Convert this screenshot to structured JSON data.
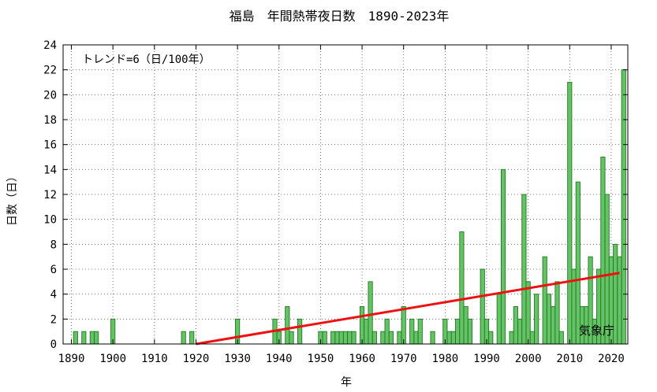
{
  "chart_data": {
    "type": "bar",
    "title": "福島　年間熱帯夜日数　1890-2023年",
    "xlabel": "年",
    "ylabel": "日数（日）",
    "trend_label": "トレンド=6（日/100年）",
    "credit": "気象庁",
    "xlim": [
      1888,
      2024
    ],
    "ylim": [
      0,
      24
    ],
    "xticks": [
      1890,
      1900,
      1910,
      1920,
      1930,
      1940,
      1950,
      1960,
      1970,
      1980,
      1990,
      2000,
      2010,
      2020
    ],
    "yticks": [
      0,
      2,
      4,
      6,
      8,
      10,
      12,
      14,
      16,
      18,
      20,
      22,
      24
    ],
    "colors": {
      "bar_fill": "#66c266",
      "bar_edge": "#1e7a1e",
      "trend": "#ee1111"
    },
    "series": [
      {
        "x": [
          1891,
          1892,
          1893,
          1894,
          1895,
          1896,
          1897,
          1898,
          1899,
          1900,
          1901,
          1902,
          1903,
          1904,
          1905,
          1906,
          1907,
          1908,
          1909,
          1910,
          1911,
          1912,
          1913,
          1914,
          1915,
          1916,
          1917,
          1918,
          1919,
          1920,
          1921,
          1922,
          1923,
          1924,
          1925,
          1926,
          1927,
          1928,
          1929,
          1930,
          1931,
          1932,
          1933,
          1934,
          1935,
          1936,
          1937,
          1938,
          1939,
          1940,
          1941,
          1942,
          1943,
          1944,
          1945,
          1946,
          1947,
          1948,
          1949,
          1950,
          1951,
          1952,
          1953,
          1954,
          1955,
          1956,
          1957,
          1958,
          1959,
          1960,
          1961,
          1962,
          1963,
          1964,
          1965,
          1966,
          1967,
          1968,
          1969,
          1970,
          1971,
          1972,
          1973,
          1974,
          1975,
          1976,
          1977,
          1978,
          1979,
          1980,
          1981,
          1982,
          1983,
          1984,
          1985,
          1986,
          1987,
          1988,
          1989,
          1990,
          1991,
          1992,
          1993,
          1994,
          1995,
          1996,
          1997,
          1998,
          1999,
          2000,
          2001,
          2002,
          2003,
          2004,
          2005,
          2006,
          2007,
          2008,
          2009,
          2010,
          2011,
          2012,
          2013,
          2014,
          2015,
          2016,
          2017,
          2018,
          2019,
          2020,
          2021,
          2022,
          2023
        ],
        "values": [
          1,
          0,
          1,
          0,
          1,
          1,
          0,
          0,
          0,
          2,
          0,
          0,
          0,
          0,
          0,
          0,
          0,
          0,
          0,
          0,
          0,
          0,
          0,
          0,
          0,
          0,
          1,
          0,
          1,
          0,
          0,
          0,
          0,
          0,
          0,
          0,
          0,
          0,
          0,
          2,
          0,
          0,
          0,
          0,
          0,
          0,
          0,
          0,
          2,
          1,
          0,
          3,
          1,
          0,
          2,
          0,
          0,
          0,
          0,
          1,
          1,
          0,
          1,
          1,
          1,
          1,
          1,
          1,
          0,
          3,
          2,
          5,
          1,
          0,
          1,
          2,
          1,
          0,
          1,
          3,
          0,
          2,
          1,
          2,
          0,
          0,
          1,
          0,
          0,
          2,
          1,
          1,
          2,
          9,
          3,
          2,
          0,
          0,
          6,
          2,
          1,
          0,
          4,
          14,
          0,
          1,
          3,
          2,
          12,
          5,
          1,
          4,
          0,
          7,
          4,
          3,
          5,
          1,
          0,
          21,
          6,
          13,
          3,
          3,
          7,
          2,
          6,
          15,
          12,
          7,
          8,
          7,
          22
        ]
      }
    ],
    "trend_line": {
      "x": [
        1920,
        2022
      ],
      "y": [
        0,
        5.7
      ]
    }
  }
}
